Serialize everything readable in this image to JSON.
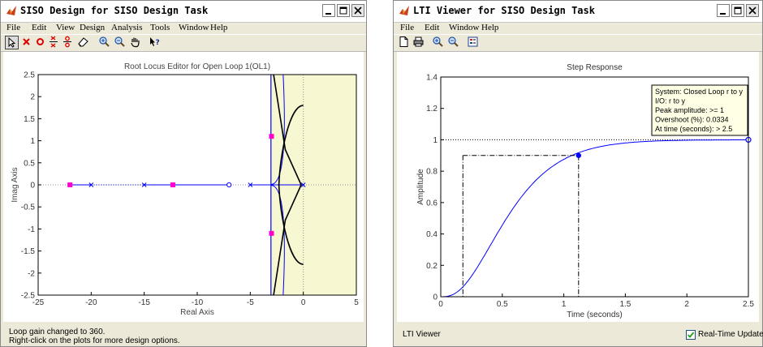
{
  "siso": {
    "title": "SISO Design for SISO Design Task",
    "menus": [
      "File",
      "Edit",
      "View",
      "Design",
      "Analysis",
      "Tools",
      "Window",
      "Help"
    ],
    "plot_title": "Root Locus Editor for Open Loop 1(OL1)",
    "xlabel": "Real Axis",
    "ylabel": "Imag Axis",
    "xticks": [
      "-25",
      "-20",
      "-15",
      "-10",
      "-5",
      "0",
      "5"
    ],
    "yticks": [
      "2.5",
      "2",
      "1.5",
      "1",
      "0.5",
      "0",
      "-0.5",
      "-1",
      "-1.5",
      "-2",
      "-2.5"
    ],
    "status_line1": "Loop gain changed to 360.",
    "status_line2": "Right-click on the plots for more design options."
  },
  "lti": {
    "title": "LTI Viewer for SISO Design Task",
    "menus": [
      "File",
      "Edit",
      "Window",
      "Help"
    ],
    "plot_title": "Step Response",
    "xlabel": "Time (seconds)",
    "ylabel": "Amplitude",
    "xticks": [
      "0",
      "0.5",
      "1",
      "1.5",
      "2",
      "2.5"
    ],
    "yticks": [
      "1.4",
      "1.2",
      "1",
      "0.8",
      "0.6",
      "0.4",
      "0.2",
      "0"
    ],
    "tooltip": {
      "line1": "System: Closed Loop r to y",
      "line2": "I/O: r to y",
      "line3": "Peak amplitude: >= 1",
      "line4": "Overshoot (%): 0.0334",
      "line5": "At time (seconds): > 2.5"
    },
    "status": "LTI Viewer",
    "realtime_label": "Real-Time Update",
    "realtime_checked": true
  },
  "colors": {
    "locus_blue": "#0000ff",
    "marker_magenta": "#ff00cc",
    "shade_yellow": "#f7f7d2",
    "tooltip_bg": "#ffffe6"
  }
}
